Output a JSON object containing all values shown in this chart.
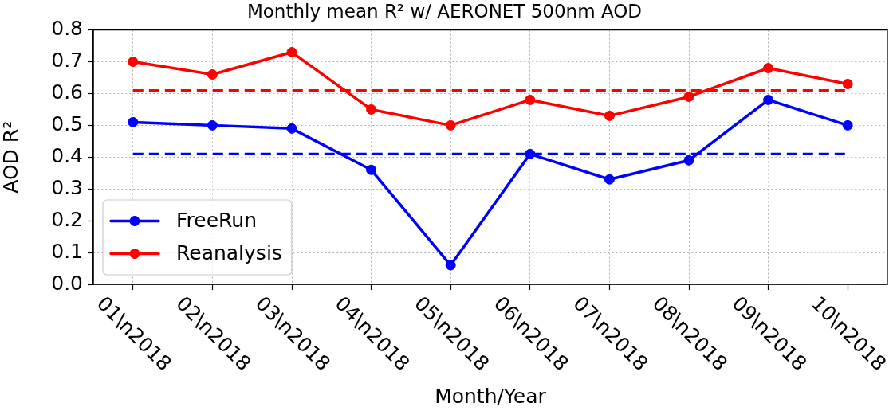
{
  "chart_data": {
    "type": "line",
    "title": "Monthly mean R² w/ AERONET 500nm AOD",
    "xlabel": "Month/Year",
    "ylabel": "AOD R²",
    "categories": [
      "01\\n2018",
      "02\\n2018",
      "03\\n2018",
      "04\\n2018",
      "05\\n2018",
      "06\\n2018",
      "07\\n2018",
      "08\\n2018",
      "09\\n2018",
      "10\\n2018"
    ],
    "series": [
      {
        "name": "FreeRun",
        "color": "#0000ff",
        "values": [
          0.51,
          0.5,
          0.49,
          0.36,
          0.06,
          0.41,
          0.33,
          0.39,
          0.58,
          0.5
        ]
      },
      {
        "name": "Reanalysis",
        "color": "#ff0000",
        "values": [
          0.7,
          0.66,
          0.73,
          0.55,
          0.5,
          0.58,
          0.53,
          0.59,
          0.68,
          0.63
        ]
      }
    ],
    "ref_lines": [
      {
        "axis": "y",
        "value": 0.41,
        "color": "#0000ff",
        "line_style": "dashed"
      },
      {
        "axis": "y",
        "value": 0.61,
        "color": "#ff0000",
        "line_style": "dashed"
      }
    ],
    "ylim": [
      0,
      0.8
    ],
    "yticks": [
      {
        "value": 0,
        "label": "0.0"
      },
      0.1,
      0.2,
      0.3,
      0.4,
      0.5,
      0.6,
      0.7,
      0.8
    ],
    "grid": true,
    "legend": "bottom left",
    "marker": "circle"
  }
}
